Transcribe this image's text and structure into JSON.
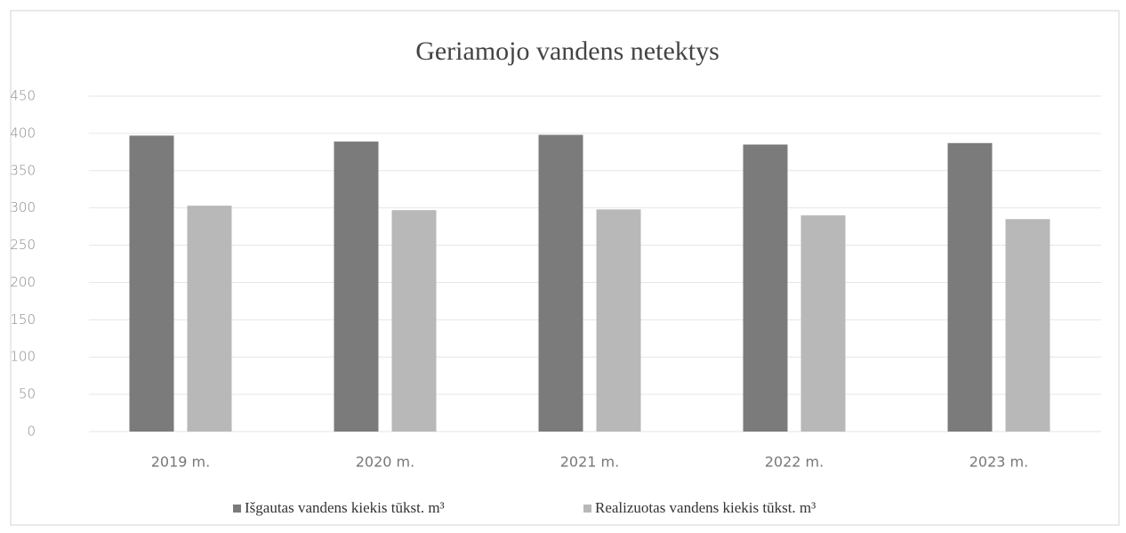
{
  "chart_data": {
    "type": "bar",
    "title": "Geriamojo vandens netektys",
    "categories": [
      "2019 m.",
      "2020 m.",
      "2021 m.",
      "2022 m.",
      "2023 m."
    ],
    "series": [
      {
        "name": "Išgautas vandens kiekis tūkst. m³",
        "color": "#7b7b7b",
        "values": [
          397,
          389,
          398,
          385,
          387
        ]
      },
      {
        "name": "Realizuotas vandens kiekis tūkst. m³",
        "color": "#b8b8b8",
        "values": [
          303,
          297,
          298,
          290,
          285
        ]
      }
    ],
    "ylim": [
      0,
      450
    ],
    "yticks": [
      0,
      50,
      100,
      150,
      200,
      250,
      300,
      350,
      400,
      450
    ],
    "grid": true,
    "legend": "bottom"
  }
}
